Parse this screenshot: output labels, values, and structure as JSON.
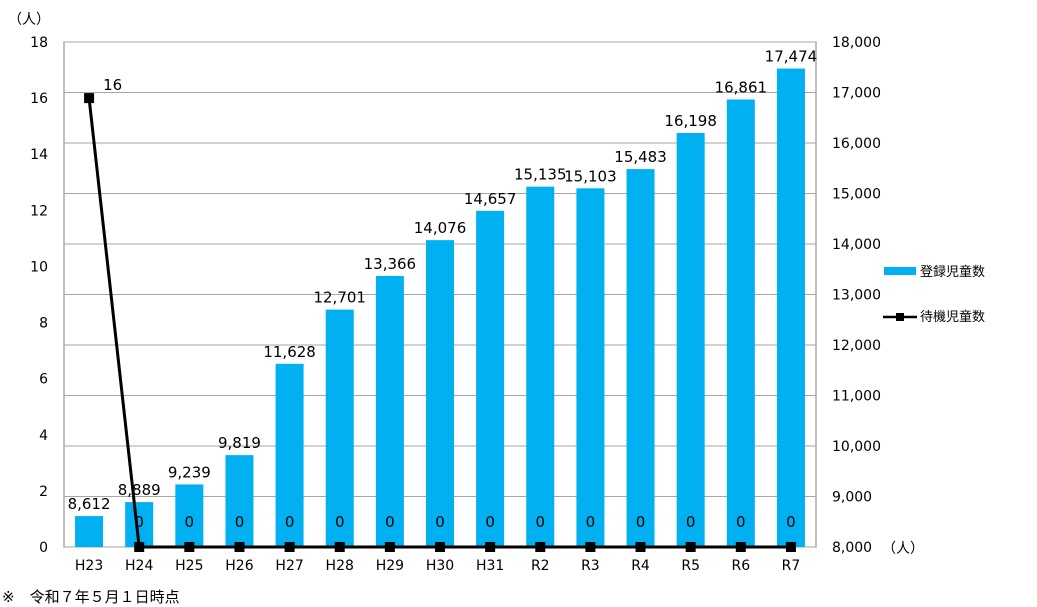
{
  "chart_data": {
    "type": "bar",
    "categories": [
      "H23",
      "H24",
      "H25",
      "H26",
      "H27",
      "H28",
      "H29",
      "H30",
      "H31",
      "R2",
      "R3",
      "R4",
      "R5",
      "R6",
      "R7"
    ],
    "series": [
      {
        "name": "登録児童数",
        "type": "bar",
        "axis": "right",
        "color": "#00b0f0",
        "values": [
          8612,
          8889,
          9239,
          9819,
          11628,
          12701,
          13366,
          14076,
          14657,
          15135,
          15103,
          15483,
          16198,
          16861,
          17474
        ],
        "labels": [
          "8,612",
          "8,889",
          "9,239",
          "9,819",
          "11,628",
          "12,701",
          "13,366",
          "14,076",
          "14,657",
          "15,135",
          "15,103",
          "15,483",
          "16,198",
          "16,861",
          "17,474"
        ]
      },
      {
        "name": "待機児童数",
        "type": "line",
        "axis": "left",
        "color": "#000000",
        "values": [
          16,
          0,
          0,
          0,
          0,
          0,
          0,
          0,
          0,
          0,
          0,
          0,
          0,
          0,
          0
        ],
        "labels": [
          "16",
          "0",
          "0",
          "0",
          "0",
          "0",
          "0",
          "0",
          "0",
          "0",
          "0",
          "0",
          "0",
          "0",
          "0"
        ]
      }
    ],
    "left_axis": {
      "unit": "（人）",
      "ylim": [
        0,
        18
      ],
      "ticks": [
        "0",
        "2",
        "4",
        "6",
        "8",
        "10",
        "12",
        "14",
        "16",
        "18"
      ]
    },
    "right_axis": {
      "unit": "（人）",
      "ylim": [
        8000,
        18000
      ],
      "ticks": [
        "8,000",
        "9,000",
        "10,000",
        "11,000",
        "12,000",
        "13,000",
        "14,000",
        "15,000",
        "16,000",
        "17,000",
        "18,000"
      ]
    },
    "grid": true,
    "legend_position": "right"
  },
  "footnote": "※　令和７年５月１日時点"
}
